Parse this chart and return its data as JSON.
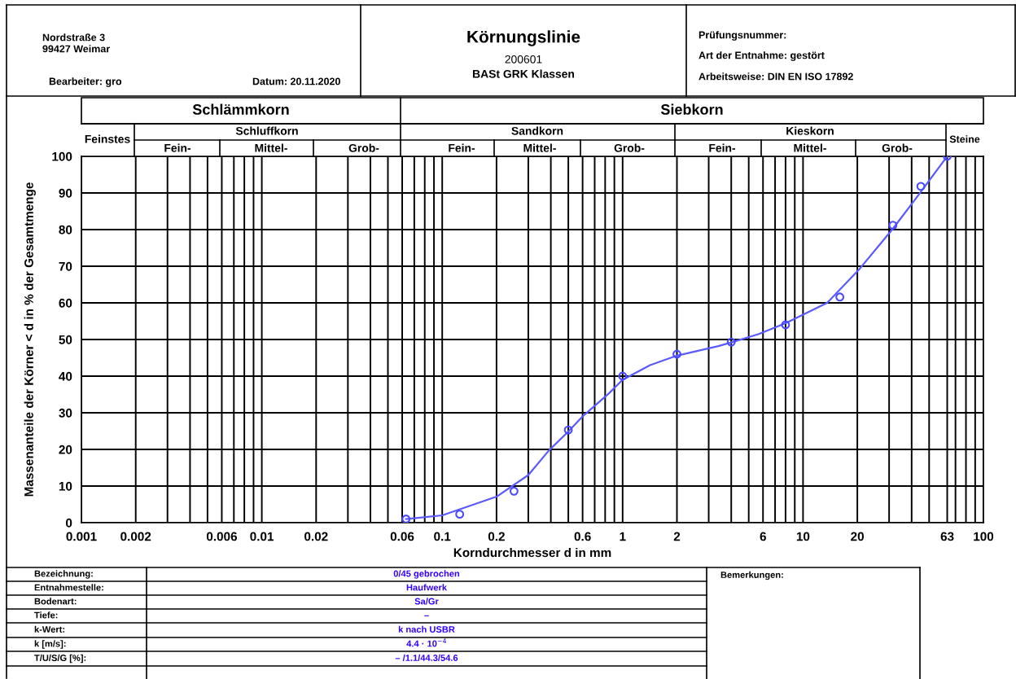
{
  "chart_data": {
    "type": "scatter",
    "title": "Körnungslinie",
    "subtitle": "200601",
    "xlabel": "Korndurchmesser d in mm",
    "ylabel": "Massenanteile der Körner < d in % der Gesamtmenge",
    "log": "x",
    "xlim": [
      0.001,
      100
    ],
    "xticks": [
      0.001,
      0.002,
      {
        "value": 0.003,
        "label": null
      },
      {
        "value": 0.004,
        "label": null
      },
      {
        "value": 0.005,
        "label": null
      },
      0.006,
      {
        "value": 0.007,
        "label": null
      },
      {
        "value": 0.008,
        "label": null
      },
      {
        "value": 0.009,
        "label": null
      },
      0.01,
      0.02,
      {
        "value": 0.03,
        "label": null
      },
      {
        "value": 0.04,
        "label": null
      },
      {
        "value": 0.05,
        "label": null
      },
      0.06,
      {
        "value": 0.07,
        "label": null
      },
      {
        "value": 0.08,
        "label": null
      },
      {
        "value": 0.09,
        "label": null
      },
      0.1,
      0.2,
      {
        "value": 0.3,
        "label": null
      },
      {
        "value": 0.4,
        "label": null
      },
      {
        "value": 0.5,
        "label": null
      },
      0.6,
      {
        "value": 0.7,
        "label": null
      },
      {
        "value": 0.8,
        "label": null
      },
      {
        "value": 0.9,
        "label": null
      },
      1,
      2,
      {
        "value": 3,
        "label": null
      },
      {
        "value": 4,
        "label": null
      },
      {
        "value": 5,
        "label": null
      },
      6,
      {
        "value": 7,
        "label": null
      },
      {
        "value": 8,
        "label": null
      },
      {
        "value": 9,
        "label": null
      },
      10,
      20,
      {
        "value": 30,
        "label": null
      },
      {
        "value": 40,
        "label": null
      },
      {
        "value": 50,
        "label": null
      },
      63,
      {
        "value": 70,
        "label": null
      },
      {
        "value": 80,
        "label": null
      },
      {
        "value": 90,
        "label": null
      },
      100
    ],
    "ylim": [
      0,
      100
    ],
    "yticks": [
      0,
      10,
      20,
      30,
      40,
      50,
      60,
      70,
      80,
      90,
      100
    ],
    "grid": true,
    "series": [
      {
        "color": "#4a4aff",
        "marker": "circle",
        "x": [
          0.063,
          0.125,
          0.25,
          0.5,
          1,
          2,
          4,
          8,
          16,
          31.5,
          45,
          63
        ],
        "values": [
          1,
          2.3,
          8.6,
          25.3,
          40,
          46,
          49.3,
          54,
          61.6,
          81.2,
          91.8,
          100
        ]
      },
      {
        "type": "line",
        "color": "#5a5aff",
        "line_style": "solid",
        "x": [
          0.063,
          0.1,
          0.2,
          0.3,
          0.39,
          0.5,
          0.6,
          0.84,
          1,
          1.42,
          2,
          3.39,
          4,
          5.69,
          8.05,
          13.6,
          20.6,
          31.2,
          41.2,
          63
        ],
        "values": [
          1,
          2,
          7.1,
          13,
          19.7,
          24.9,
          29,
          35.3,
          39,
          43,
          45.6,
          48.2,
          49.2,
          51.5,
          54.5,
          60,
          69.3,
          80,
          87.8,
          100
        ]
      }
    ],
    "annotations": [
      "Nordstraße 3",
      "99427 Weimar",
      "Bearbeiter: gro",
      "Datum: 20.11.2020",
      "BASt GRK Klassen",
      "Prüfungsnummer:",
      "Art der Entnahme: gestört",
      "Arbeitsweise: DIN EN ISO 17892",
      "Schlämmkorn",
      "Siebkorn",
      "Feinstes",
      "Schluffkorn",
      "Sandkorn",
      "Kieskorn",
      "Steine",
      "Fein-",
      "Mittel-",
      "Grob-",
      "Fein-",
      "Mittel-",
      "Grob-",
      "Fein-",
      "Mittel-",
      "Grob-",
      "Bezeichnung:",
      "Entnahmestelle:",
      "Bodenart:",
      "Tiefe:",
      "k-Wert:",
      "k [m/s]:",
      "T/U/S/G [%]:",
      "0/45 gebrochen",
      "Haufwerk",
      "Sa/Gr",
      "–",
      "k nach USBR",
      "4.4 · 10$^{−4}$",
      "– /1.1/44.3/54.6",
      "Bemerkungen:"
    ]
  }
}
